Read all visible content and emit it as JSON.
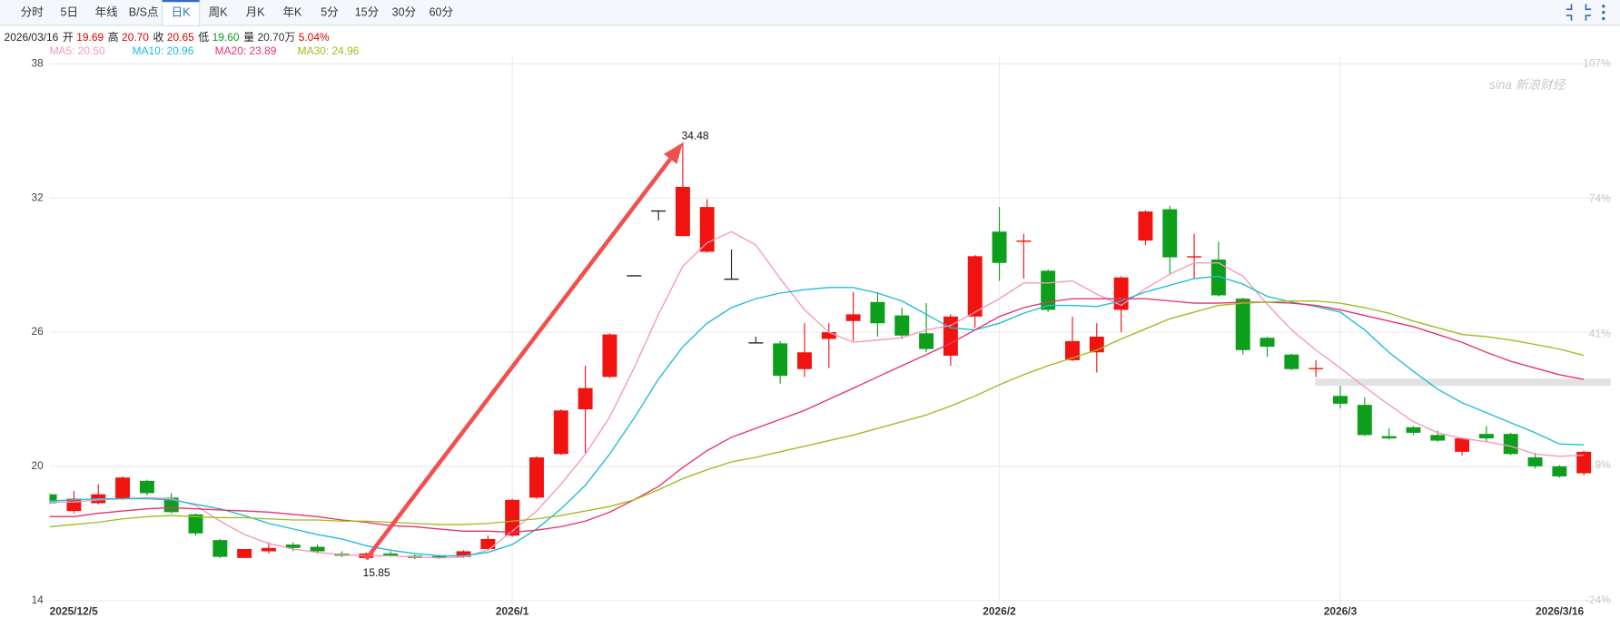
{
  "toolbar": {
    "tabs": [
      "分时",
      "5日",
      "年线",
      "B/S点",
      "日K",
      "周K",
      "月K",
      "年K",
      "5分",
      "15分",
      "30分",
      "60分"
    ],
    "selected": 4
  },
  "quote": {
    "date": "2026/03/16",
    "items": [
      {
        "label": "开",
        "value": "19.69",
        "color": "#e00000"
      },
      {
        "label": "高",
        "value": "20.70",
        "color": "#e00000"
      },
      {
        "label": "收",
        "value": "20.65",
        "color": "#e00000"
      },
      {
        "label": "低",
        "value": "19.60",
        "color": "#0a9a1e"
      },
      {
        "label": "量",
        "value": "20.70万",
        "color": "#333333"
      },
      {
        "value": "5.04%",
        "color": "#e00000"
      }
    ]
  },
  "watermark": "sina 新浪财经",
  "chart_data": {
    "type": "candlestick",
    "categories": [
      "2025/12/5",
      null,
      null,
      null,
      null,
      null,
      null,
      null,
      null,
      null,
      null,
      null,
      null,
      null,
      null,
      null,
      null,
      null,
      null,
      "2026/1",
      null,
      null,
      null,
      null,
      null,
      null,
      null,
      null,
      null,
      null,
      null,
      null,
      null,
      null,
      null,
      null,
      null,
      null,
      null,
      "2026/2",
      null,
      null,
      null,
      null,
      null,
      null,
      null,
      null,
      null,
      null,
      null,
      null,
      null,
      "2026/3",
      null,
      null,
      null,
      null,
      null,
      null,
      null,
      null,
      null,
      "2026/3/16"
    ],
    "open": [
      18.75,
      18.0,
      18.35,
      18.55,
      19.35,
      18.6,
      17.85,
      16.7,
      15.9,
      16.2,
      16.5,
      16.4,
      16.1,
      15.9,
      16.1,
      16.0,
      15.98,
      15.95,
      16.3,
      16.9,
      18.6,
      20.55,
      22.55,
      24.0,
      28.55,
      31.45,
      30.3,
      29.6,
      28.4,
      25.55,
      25.5,
      24.35,
      25.7,
      26.5,
      27.35,
      26.75,
      25.95,
      24.95,
      26.7,
      30.5,
      30.05,
      28.75,
      24.75,
      25.1,
      27.0,
      30.1,
      31.5,
      29.35,
      29.25,
      27.5,
      25.75,
      25.0,
      24.35,
      23.15,
      22.75,
      21.35,
      21.75,
      21.4,
      20.65,
      21.45,
      21.45,
      20.4,
      20.0,
      19.69
    ],
    "high": [
      18.8,
      18.9,
      19.2,
      19.55,
      19.4,
      18.8,
      17.9,
      16.75,
      16.3,
      16.6,
      16.6,
      16.5,
      16.2,
      16.15,
      16.2,
      16.05,
      16.05,
      16.25,
      16.9,
      18.55,
      20.45,
      22.55,
      24.5,
      25.95,
      28.55,
      31.45,
      34.48,
      31.95,
      29.7,
      25.8,
      25.6,
      26.4,
      26.4,
      27.8,
      27.8,
      27.1,
      27.3,
      26.8,
      29.45,
      31.6,
      30.4,
      28.8,
      26.7,
      26.4,
      28.5,
      31.45,
      31.65,
      30.4,
      30.05,
      27.55,
      25.8,
      25.05,
      24.75,
      23.6,
      23.1,
      21.7,
      21.8,
      21.6,
      21.3,
      21.8,
      21.5,
      20.6,
      20.05,
      20.7
    ],
    "low": [
      18.3,
      17.9,
      18.3,
      18.5,
      18.7,
      17.9,
      16.9,
      15.9,
      15.9,
      16.1,
      16.2,
      16.1,
      15.95,
      15.85,
      15.95,
      15.85,
      15.86,
      15.9,
      16.25,
      16.85,
      18.55,
      20.5,
      20.6,
      23.95,
      28.55,
      31.0,
      30.3,
      29.55,
      28.4,
      25.55,
      23.7,
      24.0,
      24.4,
      25.6,
      25.8,
      25.7,
      25.1,
      24.5,
      26.2,
      28.3,
      28.4,
      26.9,
      24.7,
      24.2,
      26.0,
      29.9,
      28.6,
      28.4,
      27.6,
      25.0,
      24.9,
      24.3,
      24.0,
      22.6,
      21.35,
      21.2,
      21.4,
      21.1,
      20.5,
      21.1,
      20.5,
      19.9,
      19.5,
      19.6
    ],
    "close": [
      18.35,
      18.55,
      18.75,
      19.5,
      18.8,
      17.95,
      17.0,
      15.95,
      16.3,
      16.35,
      16.35,
      16.2,
      16.0,
      16.1,
      16.0,
      15.9,
      15.9,
      16.2,
      16.75,
      18.5,
      20.4,
      22.5,
      23.5,
      25.9,
      28.55,
      31.45,
      32.5,
      31.6,
      28.4,
      25.55,
      24.05,
      25.1,
      26.0,
      26.8,
      26.4,
      25.85,
      25.25,
      26.7,
      29.4,
      29.1,
      30.1,
      27.0,
      25.6,
      25.8,
      28.45,
      31.4,
      29.35,
      29.4,
      27.65,
      25.2,
      25.35,
      24.35,
      24.4,
      22.8,
      21.4,
      21.25,
      21.5,
      21.15,
      21.25,
      21.25,
      20.55,
      20.0,
      19.55,
      20.65
    ],
    "up_color": "#f0130f",
    "down_color": "#0d9e1c",
    "flat_color": "#222222",
    "series": [
      {
        "name": "MA5: 20.50",
        "color": "#f49ab8",
        "values": [
          18.4,
          18.4,
          18.5,
          18.55,
          18.6,
          18.55,
          18.25,
          17.55,
          16.95,
          16.55,
          16.3,
          16.15,
          16.05,
          16.0,
          16.0,
          15.95,
          15.9,
          15.95,
          16.25,
          17.1,
          18.0,
          19.2,
          20.55,
          22.2,
          24.4,
          26.8,
          28.95,
          30.0,
          30.5,
          29.9,
          28.4,
          27.0,
          26.0,
          25.55,
          25.65,
          25.75,
          26.1,
          26.3,
          26.9,
          27.5,
          28.2,
          28.2,
          28.3,
          27.7,
          27.2,
          27.95,
          28.6,
          29.1,
          29.1,
          28.5,
          27.25,
          26.1,
          25.2,
          24.4,
          23.55,
          22.75,
          22.0,
          21.5,
          21.25,
          21.1,
          20.9,
          20.55,
          20.45,
          20.5
        ]
      },
      {
        "name": "MA10: 20.96",
        "color": "#1fbcd6",
        "values": [
          18.45,
          18.5,
          18.55,
          18.55,
          18.55,
          18.5,
          18.3,
          18.1,
          17.8,
          17.45,
          17.2,
          16.95,
          16.75,
          16.45,
          16.25,
          16.1,
          16.0,
          16.0,
          16.15,
          16.5,
          17.2,
          18.1,
          19.15,
          20.55,
          22.15,
          23.9,
          25.35,
          26.4,
          27.1,
          27.5,
          27.75,
          27.9,
          28.0,
          28.0,
          27.75,
          27.4,
          26.8,
          26.2,
          26.1,
          26.4,
          26.85,
          27.2,
          27.2,
          27.15,
          27.4,
          27.8,
          28.1,
          28.4,
          28.5,
          28.15,
          27.6,
          27.35,
          27.15,
          26.9,
          26.1,
          25.1,
          24.25,
          23.45,
          22.85,
          22.4,
          21.95,
          21.5,
          21.0,
          20.96
        ]
      },
      {
        "name": "MA20: 23.89",
        "color": "#e8336a",
        "values": [
          17.75,
          17.75,
          17.9,
          18.0,
          18.1,
          18.15,
          18.1,
          18.05,
          18.0,
          17.95,
          17.85,
          17.75,
          17.6,
          17.5,
          17.35,
          17.3,
          17.2,
          17.1,
          17.1,
          17.05,
          17.15,
          17.3,
          17.55,
          17.95,
          18.5,
          19.1,
          19.95,
          20.7,
          21.3,
          21.7,
          22.1,
          22.5,
          23.0,
          23.5,
          24.0,
          24.5,
          25.0,
          25.5,
          26.1,
          26.7,
          27.1,
          27.35,
          27.5,
          27.5,
          27.5,
          27.5,
          27.4,
          27.3,
          27.3,
          27.35,
          27.35,
          27.3,
          27.2,
          27.0,
          26.75,
          26.5,
          26.25,
          25.9,
          25.55,
          25.1,
          24.7,
          24.4,
          24.1,
          23.89
        ]
      },
      {
        "name": "MA30: 24.96",
        "color": "#9cbd1e",
        "values": [
          17.3,
          17.4,
          17.5,
          17.65,
          17.75,
          17.8,
          17.75,
          17.7,
          17.7,
          17.65,
          17.6,
          17.6,
          17.55,
          17.55,
          17.5,
          17.45,
          17.4,
          17.4,
          17.45,
          17.55,
          17.65,
          17.8,
          18.0,
          18.2,
          18.5,
          18.95,
          19.45,
          19.85,
          20.2,
          20.4,
          20.65,
          20.9,
          21.15,
          21.4,
          21.7,
          22.0,
          22.3,
          22.7,
          23.15,
          23.65,
          24.1,
          24.5,
          24.85,
          25.2,
          25.7,
          26.15,
          26.6,
          26.9,
          27.2,
          27.3,
          27.35,
          27.4,
          27.4,
          27.3,
          27.1,
          26.85,
          26.5,
          26.2,
          25.9,
          25.8,
          25.65,
          25.45,
          25.25,
          24.96
        ]
      }
    ],
    "ylim": [
      14,
      38
    ],
    "yticks": [
      14,
      20,
      26,
      32,
      38
    ],
    "y2lim": [
      -24,
      107
    ],
    "y2ticks": [
      {
        "value": -24,
        "label": "-24%"
      },
      {
        "value": 9,
        "label": "9%"
      },
      {
        "value": 41,
        "label": "41%"
      },
      {
        "value": 74,
        "label": "74%"
      },
      {
        "value": 107,
        "label": "107%"
      }
    ],
    "grid": true
  }
}
